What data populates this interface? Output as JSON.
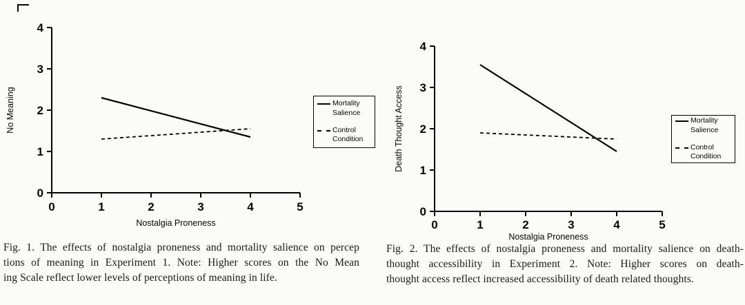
{
  "page": {
    "background": "#fbfbfa",
    "ink_color": "#000000"
  },
  "figures": [
    {
      "id": "fig1",
      "caption_lines": [
        "Fig. 1. The effects of nostalgia proneness and mortality salience on percep",
        "tions of meaning in Experiment 1. Note: Higher scores on the No Mean",
        "ing Scale reflect lower levels of perceptions of meaning in life."
      ]
    },
    {
      "id": "fig2",
      "caption_lines": [
        "Fig. 2. The effects of nostalgia proneness and mortality salience on death-",
        "thought accessibility in Experiment 2. Note: Higher scores on death-",
        "thought access reflect increased accessibility of death related thoughts."
      ]
    }
  ],
  "chart_data": [
    {
      "type": "line",
      "title": "",
      "xlabel": "Nostalgia Proneness",
      "ylabel": "No Meaning",
      "xlim": [
        0,
        5
      ],
      "ylim": [
        0,
        4
      ],
      "xticks": [
        0,
        1,
        2,
        3,
        4,
        5
      ],
      "yticks": [
        0,
        1,
        2,
        3,
        4
      ],
      "grid": false,
      "legend_position": "right",
      "series": [
        {
          "name": "Mortality Salience",
          "legend_label": "Mortality\nSalience",
          "style": "solid",
          "color": "#000000",
          "x": [
            1,
            4
          ],
          "y": [
            2.3,
            1.35
          ]
        },
        {
          "name": "Control Condition",
          "legend_label": "Control\nCondition",
          "style": "dashed",
          "color": "#000000",
          "x": [
            1,
            4
          ],
          "y": [
            1.3,
            1.55
          ]
        }
      ]
    },
    {
      "type": "line",
      "title": "",
      "xlabel": "Nostalgia Proneness",
      "ylabel": "Death Thought Access",
      "xlim": [
        0,
        5
      ],
      "ylim": [
        0,
        4
      ],
      "xticks": [
        0,
        1,
        2,
        3,
        4,
        5
      ],
      "yticks": [
        0,
        1,
        2,
        3,
        4
      ],
      "grid": false,
      "legend_position": "right",
      "series": [
        {
          "name": "Mortality Salience",
          "legend_label": "Mortality\nSalience",
          "style": "solid",
          "color": "#000000",
          "x": [
            1,
            4
          ],
          "y": [
            3.55,
            1.45
          ]
        },
        {
          "name": "Control Condition",
          "legend_label": "Control\nCondition",
          "style": "dashed",
          "color": "#000000",
          "x": [
            1,
            4
          ],
          "y": [
            1.9,
            1.75
          ]
        }
      ]
    }
  ]
}
